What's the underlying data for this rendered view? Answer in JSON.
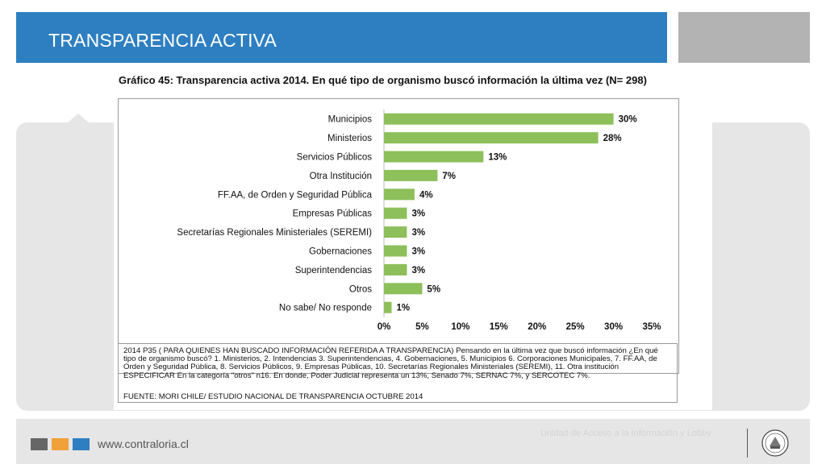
{
  "header": {
    "title": "TRANSPARENCIA ACTIVA",
    "accent_color": "#2e7fc1"
  },
  "chart_data": {
    "type": "bar",
    "orientation": "horizontal",
    "title": "Gráfico 45: Transparencia activa 2014. En qué tipo de organismo buscó información la última vez (N= 298)",
    "categories": [
      "Municipios",
      "Ministerios",
      "Servicios Públicos",
      "Otra Institución",
      "FF.AA, de Orden y Seguridad Pública",
      "Empresas Públicas",
      "Secretarías Regionales Ministeriales (SEREMI)",
      "Gobernaciones",
      "Superintendencias",
      "Otros",
      "No sabe/ No responde"
    ],
    "values": [
      30,
      28,
      13,
      7,
      4,
      3,
      3,
      3,
      3,
      5,
      1
    ],
    "data_labels": [
      "30%",
      "28%",
      "13%",
      "7%",
      "4%",
      "3%",
      "3%",
      "3%",
      "3%",
      "5%",
      "1%"
    ],
    "xlim": [
      0,
      35
    ],
    "xticks": [
      "0%",
      "5%",
      "10%",
      "15%",
      "20%",
      "25%",
      "30%",
      "35%"
    ],
    "bar_color": "#8dbf5a",
    "grid": false,
    "legend": "none"
  },
  "note": {
    "question": "2014 P35 ( PARA QUIENES HAN BUSCADO INFORMACIÓN REFERIDA A TRANSPARENCIA) Pensando en la última vez que buscó información ¿En qué tipo de organismo buscó? 1. Ministerios, 2. Intendencias 3. Superintendencias, 4. Gobernaciones, 5. Municipios 6. Corporaciones Municipales, 7. FF.AA, de Orden y Seguridad Pública, 8. Servicios Públicos, 9. Empresas Públicas, 10. Secretarías Regionales Ministeriales (SEREMI), 11. Otra institución ESPECIFICAR En la categoría \"otros\" n16. En donde, Poder Judicial representa un 13%, Senado 7%, SERNAC 7%, y SERCOTEC 7%.",
    "source": "FUENTE: MORI CHILE/ ESTUDIO NACIONAL DE TRANSPARENCIA OCTUBRE 2014"
  },
  "footer": {
    "url": "www.contraloria.cl",
    "unit": "Unidad de Acceso a la Información y Lobby",
    "square_colors": [
      "#666666",
      "#f0a13a",
      "#2e7fc1"
    ],
    "seal_icon": "contraloria-seal-icon"
  }
}
